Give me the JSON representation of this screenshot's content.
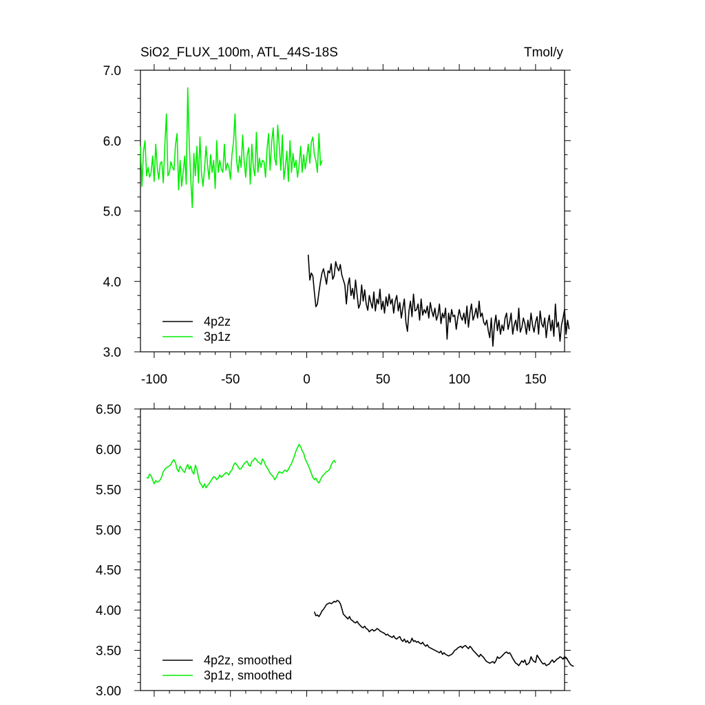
{
  "header": {
    "title": "SiO2_FLUX_100m, ATL_44S-18S",
    "units": "Tmol/y"
  },
  "colors": {
    "4p2z": "#000000",
    "3p1z": "#00ee00"
  },
  "chart_data": [
    {
      "type": "line",
      "title": "SiO2_FLUX_100m, ATL_44S-18S",
      "units_label": "Tmol/y",
      "xlim": [
        -109,
        169
      ],
      "ylim": [
        3.0,
        7.0
      ],
      "xticks": [
        -100,
        -50,
        0,
        50,
        100,
        150
      ],
      "xtick_labels": [
        "-100",
        "-50",
        "0",
        "50",
        "100",
        "150"
      ],
      "yticks": [
        3.0,
        4.0,
        5.0,
        6.0,
        7.0
      ],
      "ytick_labels": [
        "3.0",
        "4.0",
        "5.0",
        "6.0",
        "7.0"
      ],
      "legend_position": "bottom-left",
      "series": [
        {
          "name": "4p2z",
          "color": "#000000",
          "x_start": 1,
          "x_step": 1,
          "values": [
            4.38,
            4.02,
            4.12,
            4.08,
            3.85,
            3.64,
            3.68,
            3.85,
            4.0,
            4.12,
            4.18,
            4.07,
            3.96,
            4.15,
            4.12,
            4.25,
            4.03,
            4.08,
            4.28,
            4.2,
            4.15,
            4.24,
            4.09,
            4.02,
            3.95,
            3.68,
            3.95,
            4.05,
            3.8,
            3.9,
            3.75,
            4.02,
            3.82,
            3.62,
            3.68,
            3.95,
            3.72,
            3.88,
            3.68,
            3.59,
            3.8,
            3.7,
            3.62,
            3.85,
            3.58,
            3.75,
            3.68,
            3.89,
            3.6,
            3.72,
            3.55,
            3.78,
            3.65,
            3.82,
            3.68,
            3.75,
            3.55,
            3.72,
            3.8,
            3.58,
            3.7,
            3.48,
            3.62,
            3.75,
            3.42,
            3.29,
            3.58,
            3.72,
            3.5,
            3.82,
            3.58,
            3.6,
            3.68,
            3.45,
            3.75,
            3.52,
            3.6,
            3.55,
            3.65,
            3.48,
            3.7,
            3.58,
            3.5,
            3.62,
            3.45,
            3.52,
            3.68,
            3.4,
            3.55,
            3.48,
            3.62,
            3.18,
            3.55,
            3.42,
            3.6,
            3.5,
            3.52,
            3.32,
            3.48,
            3.6,
            3.5,
            3.45,
            3.55,
            3.4,
            3.65,
            3.35,
            3.55,
            3.68,
            3.45,
            3.52,
            3.62,
            3.48,
            3.72,
            3.5,
            3.55,
            3.42,
            3.38,
            3.45,
            3.3,
            3.2,
            3.48,
            3.08,
            3.38,
            3.52,
            3.3,
            3.45,
            3.25,
            3.38,
            3.3,
            3.48,
            3.55,
            3.32,
            3.42,
            3.55,
            3.25,
            3.38,
            3.45,
            3.3,
            3.62,
            3.28,
            3.35,
            3.48,
            3.4,
            3.25,
            3.45,
            3.3,
            3.55,
            3.38,
            3.28,
            3.42,
            3.5,
            3.25,
            3.58,
            3.4,
            3.35,
            3.48,
            3.2,
            3.4,
            3.52,
            3.3,
            3.45,
            3.22,
            3.68,
            3.35,
            3.42,
            3.15,
            3.38,
            3.48,
            3.6,
            3.25,
            3.45,
            3.32
          ]
        },
        {
          "name": "3p1z",
          "color": "#00ee00",
          "x_start": -109,
          "x_step": 1,
          "values": [
            5.92,
            5.35,
            5.85,
            6.0,
            5.5,
            5.62,
            5.48,
            5.55,
            5.78,
            5.42,
            5.95,
            5.62,
            5.45,
            5.68,
            5.7,
            5.4,
            5.95,
            6.38,
            5.5,
            5.55,
            5.7,
            5.62,
            5.58,
            5.95,
            6.1,
            5.3,
            5.72,
            5.35,
            5.55,
            5.78,
            5.38,
            6.75,
            5.95,
            5.45,
            5.05,
            5.82,
            5.5,
            5.92,
            5.4,
            6.05,
            5.55,
            5.35,
            5.6,
            5.92,
            5.65,
            5.45,
            5.8,
            5.55,
            5.72,
            5.32,
            6.0,
            5.55,
            5.72,
            5.6,
            5.55,
            5.95,
            5.58,
            5.68,
            5.62,
            5.45,
            5.8,
            5.98,
            6.38,
            5.72,
            5.55,
            5.78,
            5.62,
            6.08,
            5.7,
            5.48,
            5.8,
            5.9,
            5.38,
            5.95,
            5.62,
            5.5,
            6.12,
            5.55,
            5.75,
            5.62,
            5.72,
            5.7,
            5.48,
            5.88,
            6.1,
            5.58,
            5.98,
            6.18,
            5.75,
            5.65,
            6.22,
            5.92,
            5.58,
            6.08,
            5.45,
            5.62,
            5.85,
            5.42,
            6.0,
            5.55,
            5.82,
            5.62,
            5.72,
            5.48,
            5.65,
            5.92,
            5.55,
            5.8,
            5.6,
            5.75,
            5.95,
            5.68,
            5.98,
            6.05,
            5.8,
            5.72,
            5.55,
            6.1,
            5.65,
            5.72
          ]
        }
      ]
    },
    {
      "type": "line",
      "xlim": [
        -109,
        169
      ],
      "ylim": [
        3.0,
        6.5
      ],
      "yticks": [
        3.0,
        3.5,
        4.0,
        4.5,
        5.0,
        5.5,
        6.0,
        6.5
      ],
      "ytick_labels": [
        "3.00",
        "3.50",
        "4.00",
        "4.50",
        "5.00",
        "5.50",
        "6.00",
        "6.50"
      ],
      "legend_position": "bottom-left",
      "series": [
        {
          "name": "4p2z, smoothed",
          "color": "#000000",
          "x_start": 5,
          "x_step": 1,
          "values": [
            3.98,
            3.93,
            3.94,
            3.92,
            3.95,
            3.99,
            4.01,
            4.04,
            4.07,
            4.08,
            4.09,
            4.08,
            4.09,
            4.11,
            4.1,
            4.12,
            4.11,
            4.08,
            4.02,
            3.95,
            3.93,
            3.91,
            3.89,
            3.92,
            3.88,
            3.87,
            3.85,
            3.84,
            3.86,
            3.83,
            3.81,
            3.79,
            3.78,
            3.8,
            3.77,
            3.76,
            3.73,
            3.75,
            3.76,
            3.74,
            3.75,
            3.77,
            3.76,
            3.74,
            3.73,
            3.72,
            3.71,
            3.69,
            3.7,
            3.68,
            3.67,
            3.66,
            3.68,
            3.65,
            3.64,
            3.66,
            3.67,
            3.63,
            3.61,
            3.64,
            3.6,
            3.62,
            3.59,
            3.6,
            3.65,
            3.61,
            3.62,
            3.6,
            3.61,
            3.59,
            3.58,
            3.6,
            3.57,
            3.55,
            3.57,
            3.54,
            3.53,
            3.52,
            3.51,
            3.5,
            3.49,
            3.48,
            3.47,
            3.49,
            3.45,
            3.47,
            3.45,
            3.44,
            3.43,
            3.44,
            3.45,
            3.47,
            3.5,
            3.51,
            3.53,
            3.54,
            3.55,
            3.53,
            3.55,
            3.56,
            3.54,
            3.52,
            3.55,
            3.53,
            3.5,
            3.48,
            3.46,
            3.44,
            3.42,
            3.45,
            3.43,
            3.41,
            3.38,
            3.36,
            3.35,
            3.34,
            3.35,
            3.36,
            3.34,
            3.37,
            3.42,
            3.4,
            3.41,
            3.43,
            3.45,
            3.47,
            3.48,
            3.46,
            3.47,
            3.44,
            3.4,
            3.37,
            3.34,
            3.33,
            3.31,
            3.34,
            3.37,
            3.35,
            3.38,
            3.32,
            3.33,
            3.35,
            3.42,
            3.38,
            3.36,
            3.35,
            3.44,
            3.41,
            3.38,
            3.35,
            3.33,
            3.34,
            3.31,
            3.32,
            3.33,
            3.36,
            3.38,
            3.35,
            3.37,
            3.39,
            3.4,
            3.42,
            3.41,
            3.39,
            3.42,
            3.41,
            3.38,
            3.35,
            3.32,
            3.31,
            3.3
          ]
        },
        {
          "name": "3p1z, smoothed",
          "color": "#00ee00",
          "x_start": -105,
          "x_step": 1,
          "values": [
            5.65,
            5.64,
            5.69,
            5.67,
            5.62,
            5.57,
            5.61,
            5.59,
            5.6,
            5.62,
            5.66,
            5.72,
            5.75,
            5.77,
            5.78,
            5.79,
            5.81,
            5.85,
            5.87,
            5.83,
            5.75,
            5.72,
            5.79,
            5.76,
            5.73,
            5.71,
            5.77,
            5.81,
            5.75,
            5.79,
            5.72,
            5.69,
            5.8,
            5.75,
            5.65,
            5.58,
            5.56,
            5.52,
            5.57,
            5.52,
            5.55,
            5.57,
            5.6,
            5.63,
            5.66,
            5.65,
            5.62,
            5.64,
            5.68,
            5.65,
            5.67,
            5.69,
            5.71,
            5.7,
            5.68,
            5.72,
            5.74,
            5.8,
            5.83,
            5.81,
            5.78,
            5.75,
            5.76,
            5.79,
            5.82,
            5.84,
            5.85,
            5.8,
            5.79,
            5.85,
            5.86,
            5.89,
            5.87,
            5.84,
            5.83,
            5.81,
            5.88,
            5.85,
            5.8,
            5.77,
            5.74,
            5.7,
            5.68,
            5.66,
            5.62,
            5.65,
            5.69,
            5.72,
            5.71,
            5.7,
            5.73,
            5.74,
            5.72,
            5.75,
            5.79,
            5.82,
            5.87,
            5.92,
            5.98,
            6.02,
            6.06,
            6.03,
            5.98,
            5.95,
            5.88,
            5.84,
            5.8,
            5.75,
            5.7,
            5.65,
            5.62,
            5.64,
            5.6,
            5.58,
            5.62,
            5.66,
            5.68,
            5.7,
            5.72,
            5.73,
            5.75,
            5.8,
            5.84,
            5.86,
            5.83
          ]
        }
      ]
    }
  ]
}
